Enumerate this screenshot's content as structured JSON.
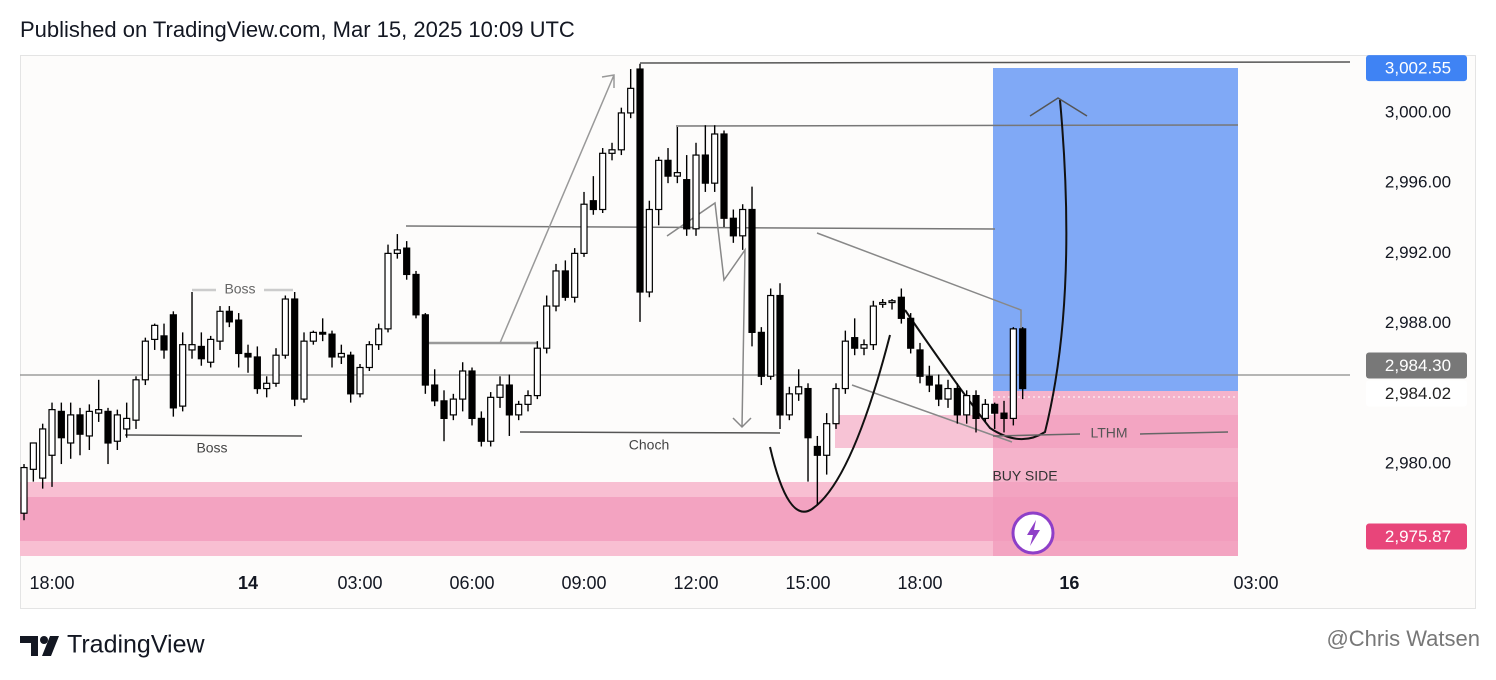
{
  "header": {
    "title": "Published on TradingView.com, Mar 15, 2025 10:09 UTC"
  },
  "chart_data": {
    "type": "candlestick",
    "open": [
      2977.2,
      2979.7,
      2979.2,
      2980.5,
      2983.0,
      2981.2,
      2982.8,
      2981.6,
      2982.9,
      2983.0,
      2981.3,
      2982.0,
      2982.5,
      2984.8,
      2987.1,
      2987.3,
      2988.5,
      2983.3,
      2986.5,
      2986.7,
      2985.8,
      2987.0,
      2988.7,
      2988.2,
      2986.3,
      2986.1,
      2984.3,
      2984.6,
      2986.2,
      2989.4,
      2983.7,
      2987.0,
      2987.5,
      2987.4,
      2986.1,
      2986.2,
      2984.0,
      2985.5,
      2986.8,
      2987.7,
      2992.0,
      2992.3,
      2990.8,
      2988.5,
      2984.5,
      2983.6,
      2982.8,
      2983.7,
      2985.3,
      2982.6,
      2981.3,
      2983.8,
      2984.5,
      2982.8,
      2983.4,
      2983.9,
      2986.6,
      2989.0,
      2991.0,
      2989.5,
      2992.0,
      2995.0,
      2994.5,
      2997.7,
      2997.9,
      3000.0,
      3002.5,
      2989.8,
      2994.5,
      2997.3,
      2996.4,
      2996.2,
      2993.4,
      2997.6,
      2996.0,
      2998.8,
      2994.0,
      2993.0,
      2994.5,
      2987.5,
      2985.0,
      2989.6,
      2982.8,
      2984.0,
      2984.3,
      2981.0,
      2980.5,
      2982.3,
      2984.3,
      2987.2,
      2986.6,
      2986.8,
      2989.1,
      2989.2,
      2989.5,
      2988.3,
      2986.5,
      2985.0,
      2984.5,
      2983.7,
      2984.3,
      2982.8,
      2983.9,
      2982.6,
      2983.4,
      2982.9,
      2982.6,
      2987.7
    ],
    "high": [
      2980.0,
      2981.2,
      2982.3,
      2983.5,
      2983.5,
      2983.5,
      2983.2,
      2983.4,
      2984.8,
      2983.2,
      2983.1,
      2983.5,
      2985.0,
      2987.2,
      2988.0,
      2988.0,
      2988.7,
      2987.5,
      2989.8,
      2987.5,
      2987.3,
      2989.0,
      2989.0,
      2988.6,
      2986.8,
      2986.7,
      2985.0,
      2986.6,
      2989.6,
      2989.8,
      2987.5,
      2987.6,
      2988.3,
      2987.6,
      2986.8,
      2986.4,
      2985.7,
      2987.0,
      2988.0,
      2992.5,
      2993.1,
      2992.7,
      2991.0,
      2988.6,
      2985.4,
      2984.2,
      2984.0,
      2985.8,
      2985.5,
      2983.0,
      2984.1,
      2985.0,
      2985.1,
      2983.6,
      2984.2,
      2987.0,
      2989.6,
      2991.4,
      2991.6,
      2992.3,
      2995.5,
      2996.4,
      2998.0,
      2998.3,
      3000.3,
      3002.5,
      3002.8,
      2995.0,
      2997.5,
      2998.0,
      2999.2,
      2997.6,
      2998.3,
      2999.3,
      2999.3,
      2999.0,
      2994.5,
      2994.8,
      2995.8,
      2987.8,
      2990.0,
      2990.3,
      2984.4,
      2985.4,
      2984.6,
      2981.6,
      2982.9,
      2984.6,
      2987.6,
      2988.3,
      2987.1,
      2989.3,
      2989.4,
      2989.4,
      2990.0,
      2988.6,
      2986.9,
      2985.6,
      2985.1,
      2984.8,
      2984.6,
      2984.2,
      2984.2,
      2983.7,
      2983.5,
      2983.6,
      2987.8,
      2987.8
    ],
    "low": [
      2976.8,
      2979.0,
      2978.6,
      2978.7,
      2980.0,
      2980.3,
      2980.5,
      2980.8,
      2982.4,
      2980.0,
      2980.8,
      2981.5,
      2982.0,
      2984.5,
      2986.5,
      2986.0,
      2982.7,
      2983.0,
      2986.0,
      2985.6,
      2985.5,
      2986.5,
      2987.8,
      2985.5,
      2985.2,
      2984.0,
      2983.8,
      2984.4,
      2986.0,
      2983.3,
      2983.5,
      2986.8,
      2987.0,
      2985.5,
      2985.7,
      2983.5,
      2983.8,
      2985.3,
      2986.5,
      2987.5,
      2991.7,
      2990.5,
      2988.3,
      2984.0,
      2983.3,
      2981.3,
      2982.5,
      2983.0,
      2982.2,
      2981.0,
      2981.0,
      2983.2,
      2981.6,
      2982.5,
      2983.0,
      2983.7,
      2986.3,
      2988.7,
      2989.3,
      2989.2,
      2991.8,
      2994.2,
      2994.3,
      2997.3,
      2997.6,
      2999.7,
      2988.1,
      2989.5,
      2993.6,
      2996.0,
      2996.0,
      2993.0,
      2993.0,
      2995.5,
      2995.5,
      2993.5,
      2992.6,
      2992.2,
      2986.7,
      2984.5,
      2984.8,
      2982.0,
      2982.5,
      2983.6,
      2979.0,
      2977.7,
      2979.4,
      2982.0,
      2984.0,
      2986.2,
      2986.2,
      2986.5,
      2988.9,
      2988.8,
      2988.0,
      2986.3,
      2984.6,
      2984.1,
      2983.3,
      2983.2,
      2982.3,
      2982.3,
      2981.8,
      2982.4,
      2982.0,
      2981.8,
      2982.2,
      2983.7
    ],
    "close": [
      2979.8,
      2981.2,
      2982.0,
      2983.1,
      2981.5,
      2982.8,
      2981.7,
      2983.0,
      2983.1,
      2981.2,
      2982.8,
      2982.6,
      2984.8,
      2987.0,
      2987.9,
      2986.5,
      2983.2,
      2986.8,
      2986.8,
      2986.0,
      2987.1,
      2988.7,
      2988.1,
      2986.3,
      2986.1,
      2984.3,
      2984.6,
      2986.2,
      2989.4,
      2983.7,
      2987.0,
      2987.5,
      2987.4,
      2986.1,
      2986.3,
      2984.0,
      2985.5,
      2986.8,
      2987.7,
      2992.0,
      2992.2,
      2990.8,
      2988.5,
      2984.5,
      2983.6,
      2982.6,
      2983.7,
      2985.3,
      2982.6,
      2981.3,
      2983.8,
      2984.5,
      2982.8,
      2983.4,
      2983.9,
      2986.6,
      2989.0,
      2991.0,
      2989.5,
      2992.0,
      2994.8,
      2994.5,
      2997.7,
      2997.9,
      3000.0,
      3001.4,
      2989.8,
      2994.5,
      2997.3,
      2996.4,
      2996.6,
      2993.4,
      2997.6,
      2996.0,
      2998.8,
      2994.0,
      2993.0,
      2994.5,
      2987.5,
      2985.0,
      2989.6,
      2982.8,
      2984.0,
      2984.4,
      2981.5,
      2980.5,
      2982.3,
      2984.3,
      2987.0,
      2986.6,
      2986.8,
      2989.0,
      2989.2,
      2989.3,
      2988.3,
      2986.6,
      2985.0,
      2984.5,
      2983.7,
      2984.3,
      2982.8,
      2983.9,
      2982.6,
      2983.4,
      2982.9,
      2982.6,
      2987.7,
      2984.3
    ],
    "up_color": "#ffffff",
    "down_color": "#000000",
    "border_color": "#000000",
    "xlim": [
      -0.43,
      142.07
    ],
    "xticks": [
      {
        "value": 3,
        "label": "18:00"
      },
      {
        "value": 24,
        "label": "14"
      },
      {
        "value": 36,
        "label": "03:00"
      },
      {
        "value": 48,
        "label": "06:00"
      },
      {
        "value": 60,
        "label": "09:00"
      },
      {
        "value": 72,
        "label": "12:00"
      },
      {
        "value": 84,
        "label": "15:00"
      },
      {
        "value": 96,
        "label": "18:00"
      },
      {
        "value": 112,
        "label": "16"
      },
      {
        "value": 132,
        "label": "03:00"
      }
    ],
    "ylim": [
      2974.25,
      3003.3
    ],
    "yticks": [
      {
        "value": 2980,
        "label": "2,980.00"
      },
      {
        "value": 2988,
        "label": "2,988.00"
      },
      {
        "value": 2992,
        "label": "2,992.00"
      },
      {
        "value": 2996,
        "label": "2,996.00"
      },
      {
        "value": 3000,
        "label": "3,000.00"
      }
    ],
    "grid": false,
    "price_labels": [
      {
        "value": 3002.55,
        "label": "3,002.55",
        "color": "#3f83f4",
        "text_color": "#ffffff"
      },
      {
        "value": 2984.3,
        "label": "2,984.30",
        "color": "#787878",
        "text_color": "#ffffff"
      },
      {
        "value": 2984.02,
        "label": "2,984.02",
        "color": "#ffffff",
        "text_color": "#222222"
      },
      {
        "value": 2975.87,
        "label": "2,975.87",
        "color": "#e8457a",
        "text_color": "#ffffff"
      }
    ],
    "annotations": [
      "Boss",
      "Boss",
      "Choch",
      "LTHM",
      "BUY SIDE"
    ]
  },
  "footer": {
    "brand": "TradingView",
    "watermark": "@Chris Watsen"
  }
}
